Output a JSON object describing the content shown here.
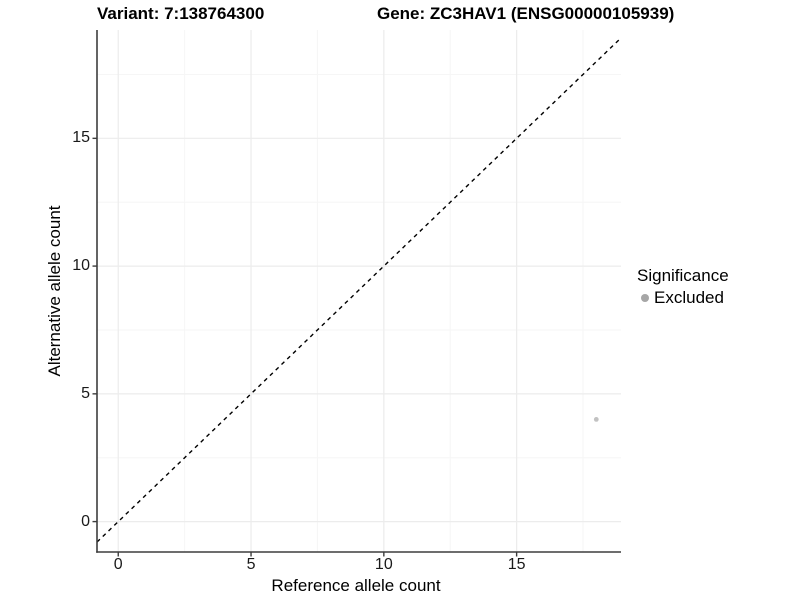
{
  "figure": {
    "title_left": "Variant: 7:138764300",
    "title_right": "Gene: ZC3HAV1 (ENSG00000105939)"
  },
  "chart_data": {
    "type": "scatter",
    "title": "Variant: 7:138764300   Gene: ZC3HAV1 (ENSG00000105939)",
    "xlabel": "Reference allele count",
    "ylabel": "Alternative allele count",
    "xlim": [
      -0.8,
      18.93
    ],
    "ylim": [
      -1.19,
      19.24
    ],
    "xticks": [
      0,
      5,
      10,
      15
    ],
    "yticks": [
      0,
      5,
      10,
      15
    ],
    "xminor": [
      2.5,
      7.5,
      12.5,
      17.5
    ],
    "yminor": [
      2.5,
      7.5,
      12.5,
      17.5
    ],
    "grid": "major and minor gridlines, white panel background",
    "legend_position": "right",
    "series": [
      {
        "name": "Excluded",
        "color": "#c2c2c2",
        "point_radius": 2.4,
        "points": [
          {
            "x": 18,
            "y": 4
          }
        ]
      }
    ],
    "reference_line": {
      "kind": "identity y=x",
      "style": "dashed",
      "color": "#000000"
    },
    "legend": {
      "title": "Significance",
      "items": [
        {
          "label": "Excluded",
          "color": "#a6a6a6"
        }
      ]
    }
  },
  "colors": {
    "background": "#ffffff",
    "axis_line": "#3d3d3d",
    "tick_mark": "#3d3d3d",
    "grid_major": "#ececec",
    "grid_minor": "#f6f6f6",
    "text": "#000000"
  }
}
